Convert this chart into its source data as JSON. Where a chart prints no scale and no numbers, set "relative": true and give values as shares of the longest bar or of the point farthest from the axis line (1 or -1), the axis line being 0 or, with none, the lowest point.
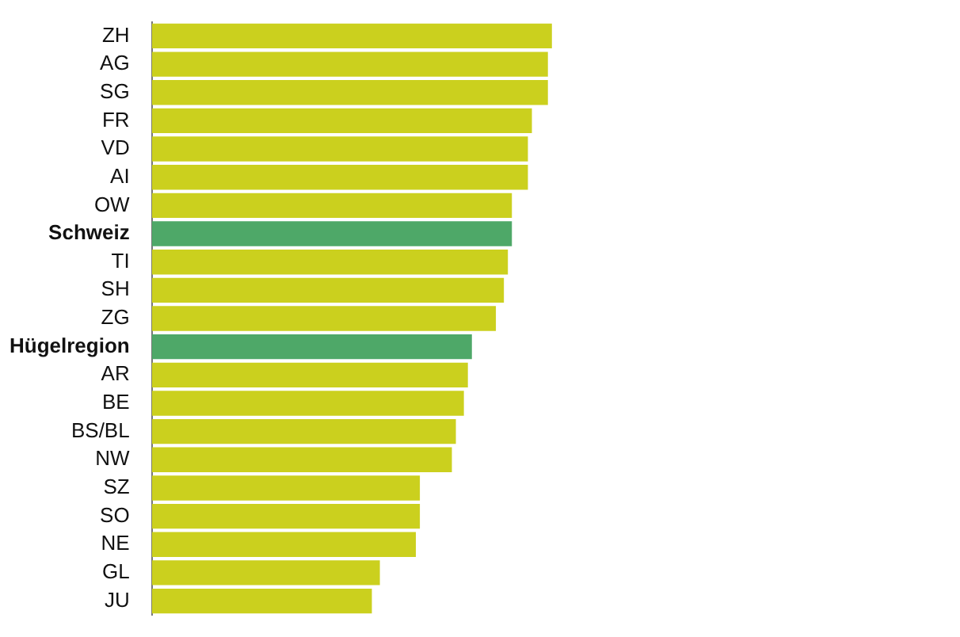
{
  "chart_data": {
    "type": "bar",
    "orientation": "horizontal",
    "relative": true,
    "legend": false,
    "categories": [
      "ZH",
      "AG",
      "SG",
      "FR",
      "VD",
      "AI",
      "OW",
      "Schweiz",
      "TI",
      "SH",
      "ZG",
      "Hügelregion",
      "AR",
      "BE",
      "BS/BL",
      "NW",
      "SZ",
      "SO",
      "NE",
      "GL",
      "JU"
    ],
    "values": [
      1,
      0.99,
      0.99,
      0.95,
      0.94,
      0.94,
      0.9,
      0.9,
      0.89,
      0.88,
      0.86,
      0.8,
      0.79,
      0.78,
      0.76,
      0.75,
      0.67,
      0.67,
      0.66,
      0.57,
      0.55
    ],
    "colors": [
      "#cbd01e",
      "#cbd01e",
      "#cbd01e",
      "#cbd01e",
      "#cbd01e",
      "#cbd01e",
      "#cbd01e",
      "#4ea868",
      "#cbd01e",
      "#cbd01e",
      "#cbd01e",
      "#4ea868",
      "#cbd01e",
      "#cbd01e",
      "#cbd01e",
      "#cbd01e",
      "#cbd01e",
      "#cbd01e",
      "#cbd01e",
      "#cbd01e",
      "#cbd01e"
    ]
  }
}
